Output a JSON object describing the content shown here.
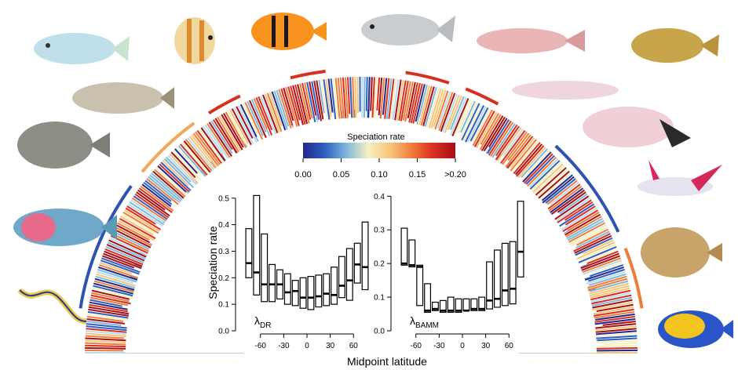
{
  "legend": {
    "title": "Speciation rate",
    "ticks": [
      "0.00",
      "0.05",
      "0.10",
      "0.15",
      ">0.20"
    ],
    "colors": [
      "#1f2a8c",
      "#2f5fbf",
      "#7fb8dc",
      "#f6f0c0",
      "#f7c57a",
      "#ee7d3a",
      "#d7301f",
      "#a50f15"
    ]
  },
  "shared_xlabel": "Midpoint latitude",
  "shared_ylabel": "Speciation rate",
  "chart_data": [
    {
      "type": "box",
      "label": "λDR",
      "label_main": "λ",
      "label_sub": "DR",
      "xlabel": "Midpoint latitude",
      "ylabel": "Speciation rate",
      "xlim": [
        -80,
        80
      ],
      "ylim": [
        0,
        0.52
      ],
      "xticks": [
        -60,
        -30,
        0,
        30,
        60
      ],
      "yticks": [
        0.0,
        0.1,
        0.2,
        0.3,
        0.4,
        0.5
      ],
      "boxes": [
        {
          "x": -75,
          "q1": 0.2,
          "median": 0.255,
          "q3": 0.385
        },
        {
          "x": -65,
          "q1": 0.135,
          "median": 0.22,
          "q3": 0.51
        },
        {
          "x": -55,
          "q1": 0.11,
          "median": 0.175,
          "q3": 0.365
        },
        {
          "x": -45,
          "q1": 0.11,
          "median": 0.175,
          "q3": 0.25
        },
        {
          "x": -35,
          "q1": 0.12,
          "median": 0.175,
          "q3": 0.23
        },
        {
          "x": -25,
          "q1": 0.1,
          "median": 0.145,
          "q3": 0.215
        },
        {
          "x": -15,
          "q1": 0.095,
          "median": 0.15,
          "q3": 0.19
        },
        {
          "x": -5,
          "q1": 0.085,
          "median": 0.125,
          "q3": 0.2
        },
        {
          "x": 5,
          "q1": 0.08,
          "median": 0.125,
          "q3": 0.205
        },
        {
          "x": 15,
          "q1": 0.09,
          "median": 0.13,
          "q3": 0.21
        },
        {
          "x": 25,
          "q1": 0.095,
          "median": 0.14,
          "q3": 0.215
        },
        {
          "x": 35,
          "q1": 0.1,
          "median": 0.135,
          "q3": 0.24
        },
        {
          "x": 45,
          "q1": 0.125,
          "median": 0.17,
          "q3": 0.28
        },
        {
          "x": 55,
          "q1": 0.115,
          "median": 0.19,
          "q3": 0.31
        },
        {
          "x": 65,
          "q1": 0.18,
          "median": 0.25,
          "q3": 0.33
        },
        {
          "x": 75,
          "q1": 0.155,
          "median": 0.24,
          "q3": 0.41
        }
      ]
    },
    {
      "type": "box",
      "label": "λBAMM",
      "label_main": "λ",
      "label_sub": "BAMM",
      "xlabel": "Midpoint latitude",
      "ylabel": "Speciation rate",
      "xlim": [
        -80,
        80
      ],
      "ylim": [
        0,
        0.41
      ],
      "xticks": [
        -60,
        -30,
        0,
        30,
        60
      ],
      "yticks": [
        0.0,
        0.1,
        0.2,
        0.3,
        0.4
      ],
      "boxes": [
        {
          "x": -75,
          "q1": 0.195,
          "median": 0.2,
          "q3": 0.305
        },
        {
          "x": -65,
          "q1": 0.19,
          "median": 0.195,
          "q3": 0.27
        },
        {
          "x": -55,
          "q1": 0.075,
          "median": 0.19,
          "q3": 0.195
        },
        {
          "x": -45,
          "q1": 0.055,
          "median": 0.06,
          "q3": 0.14
        },
        {
          "x": -35,
          "q1": 0.06,
          "median": 0.065,
          "q3": 0.085
        },
        {
          "x": -25,
          "q1": 0.055,
          "median": 0.06,
          "q3": 0.09
        },
        {
          "x": -15,
          "q1": 0.055,
          "median": 0.06,
          "q3": 0.1
        },
        {
          "x": -5,
          "q1": 0.055,
          "median": 0.06,
          "q3": 0.095
        },
        {
          "x": 5,
          "q1": 0.06,
          "median": 0.06,
          "q3": 0.095
        },
        {
          "x": 15,
          "q1": 0.06,
          "median": 0.065,
          "q3": 0.095
        },
        {
          "x": 25,
          "q1": 0.06,
          "median": 0.065,
          "q3": 0.1
        },
        {
          "x": 35,
          "q1": 0.065,
          "median": 0.09,
          "q3": 0.205
        },
        {
          "x": 45,
          "q1": 0.07,
          "median": 0.095,
          "q3": 0.24
        },
        {
          "x": 55,
          "q1": 0.075,
          "median": 0.12,
          "q3": 0.26
        },
        {
          "x": 65,
          "q1": 0.08,
          "median": 0.125,
          "q3": 0.265
        },
        {
          "x": 75,
          "q1": 0.16,
          "median": 0.235,
          "q3": 0.385
        }
      ]
    }
  ]
}
